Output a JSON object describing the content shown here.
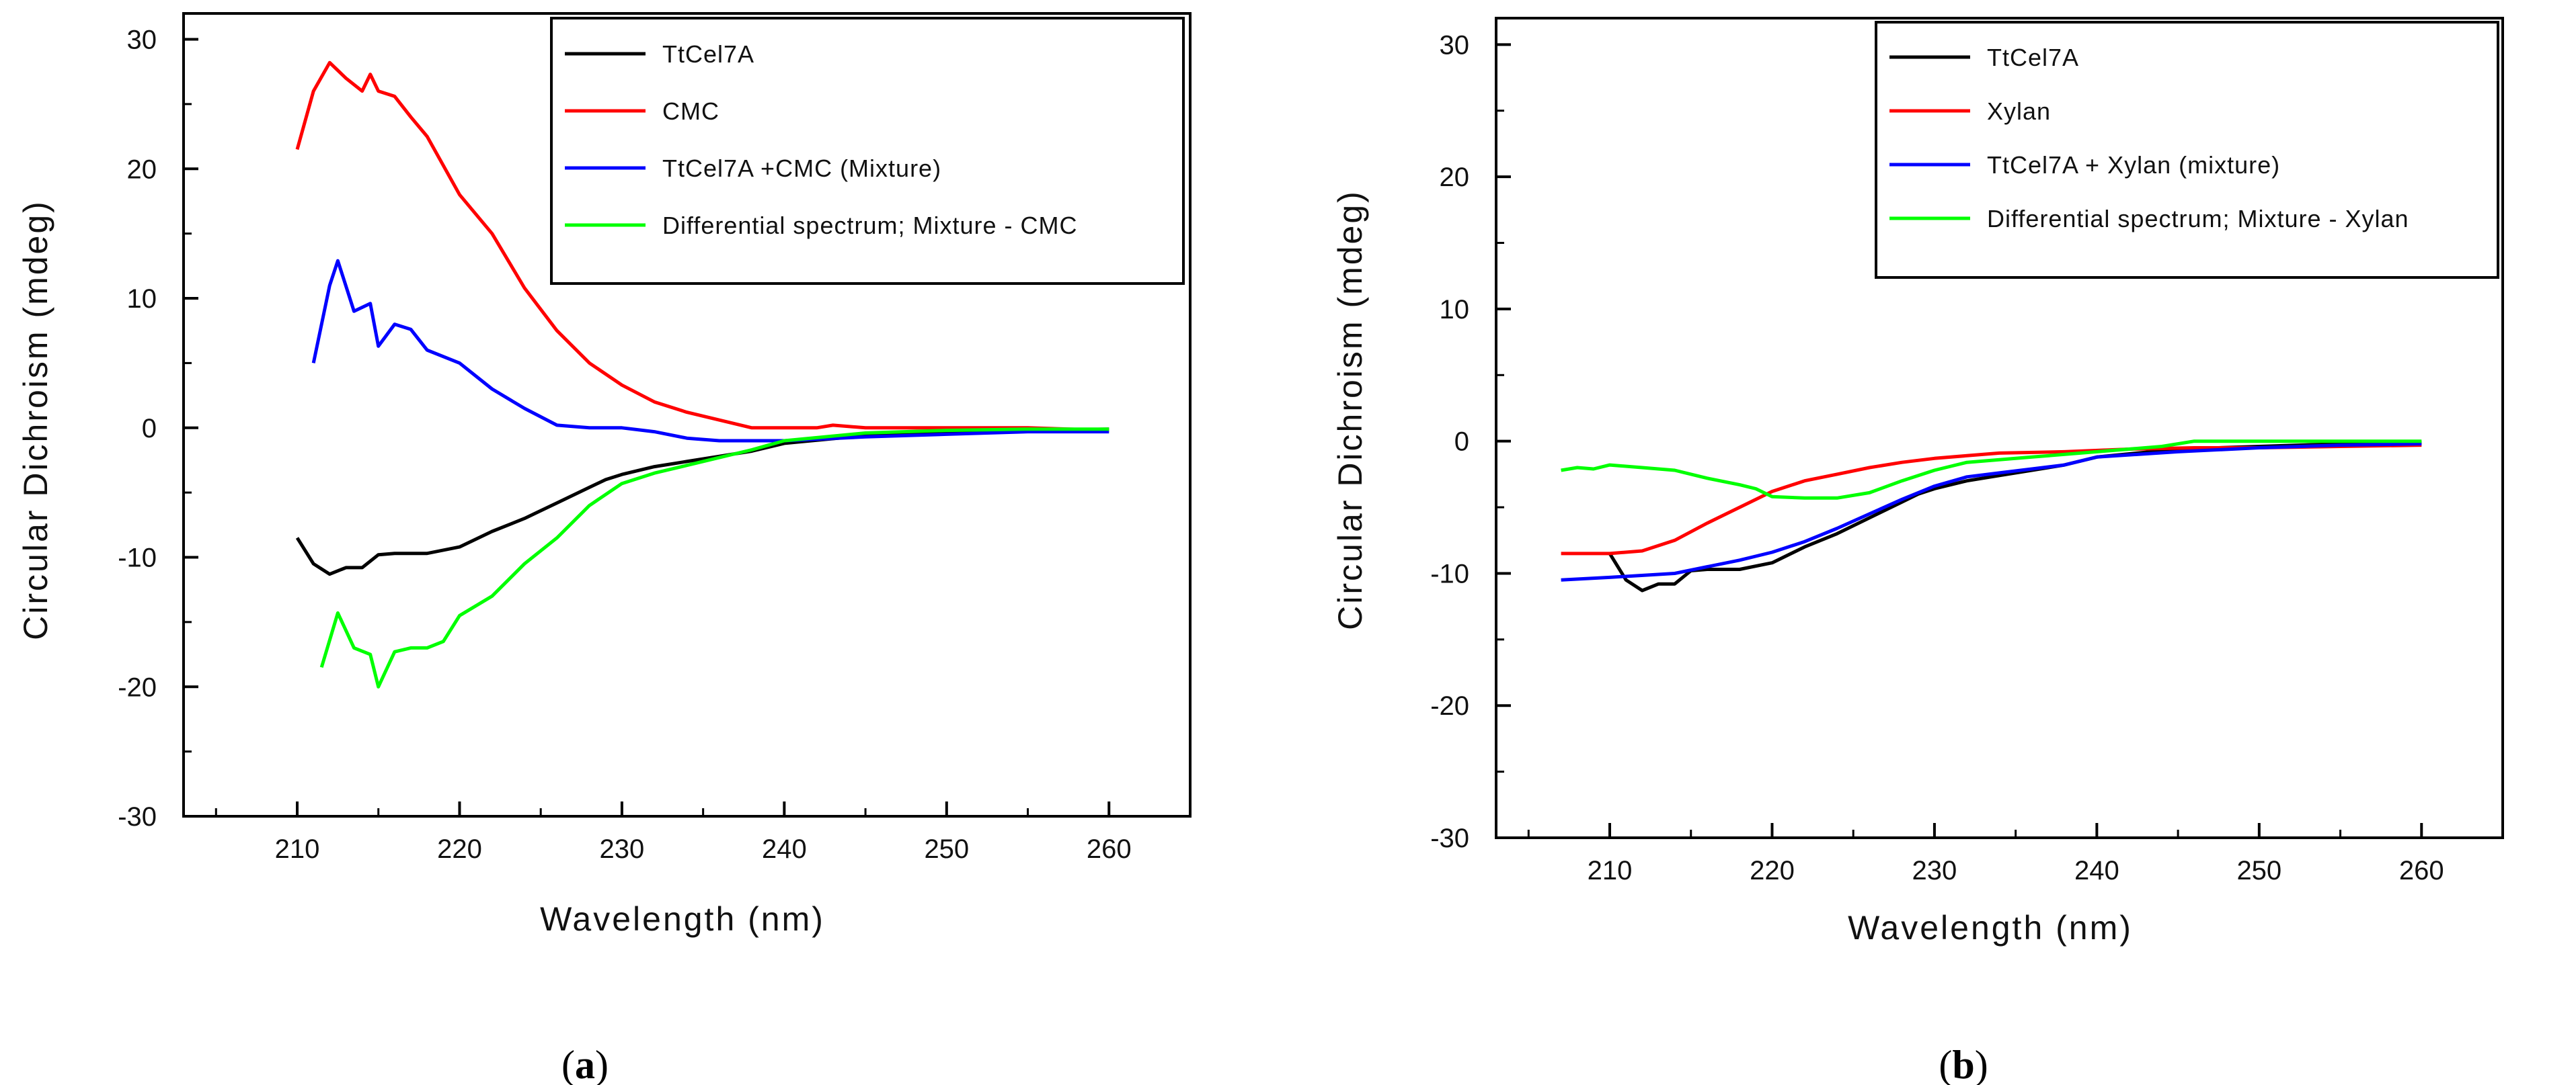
{
  "chart_data": [
    {
      "type": "line",
      "panel_label": "(a)",
      "panel_letter": "a",
      "xlabel": "Wavelength (nm)",
      "ylabel": "Circular Dichroism (mdeg)",
      "xlim": [
        203,
        265
      ],
      "ylim": [
        -30,
        32
      ],
      "xticks": [
        210,
        220,
        230,
        240,
        250,
        260
      ],
      "yticks": [
        -30,
        -20,
        -10,
        0,
        10,
        20,
        30
      ],
      "legend_position": "top-right",
      "series": [
        {
          "name": "TtCel7A",
          "color": "#000000",
          "x": [
            210,
            211,
            212,
            213,
            214,
            215,
            216,
            218,
            220,
            222,
            224,
            226,
            228,
            229,
            230,
            232,
            234,
            236,
            238,
            240,
            245,
            250,
            255,
            260
          ],
          "y": [
            -8.5,
            -10.5,
            -11.3,
            -10.8,
            -10.8,
            -9.8,
            -9.7,
            -9.7,
            -9.2,
            -8.0,
            -7.0,
            -5.8,
            -4.6,
            -4,
            -3.6,
            -3,
            -2.6,
            -2.2,
            -1.8,
            -1.2,
            -0.6,
            -0.4,
            -0.2,
            -0.1
          ]
        },
        {
          "name": "CMC",
          "color": "#ff0000",
          "x": [
            210,
            211,
            212,
            213,
            214,
            214.5,
            215,
            216,
            217,
            218,
            220,
            222,
            224,
            226,
            228,
            230,
            232,
            234,
            236,
            238,
            240,
            242,
            243,
            245,
            250,
            255,
            260
          ],
          "y": [
            21.5,
            26,
            28.2,
            27,
            26,
            27.3,
            26,
            25.6,
            24,
            22.5,
            18,
            15,
            10.8,
            7.5,
            5,
            3.3,
            2,
            1.2,
            0.6,
            0,
            0,
            0,
            0.2,
            0,
            0,
            0,
            -0.2
          ]
        },
        {
          "name": "TtCel7A +CMC (Mixture)",
          "color": "#0000ff",
          "x": [
            211,
            212,
            212.5,
            213.5,
            214.5,
            215,
            216,
            217,
            218,
            220,
            222,
            224,
            226,
            228,
            230,
            232,
            234,
            236,
            240,
            245,
            250,
            255,
            260
          ],
          "y": [
            5,
            11,
            12.9,
            9,
            9.6,
            6.3,
            8,
            7.6,
            6,
            5,
            3,
            1.5,
            0.2,
            0,
            0,
            -0.3,
            -0.8,
            -1,
            -1,
            -0.7,
            -0.5,
            -0.3,
            -0.3
          ]
        },
        {
          "name": "Differential spectrum; Mixture - CMC",
          "color": "#00ff00",
          "x": [
            211.5,
            212.5,
            213.5,
            214.5,
            215,
            216,
            217,
            218,
            219,
            220,
            222,
            224,
            226,
            228,
            230,
            232,
            234,
            236,
            238,
            240,
            245,
            250,
            255,
            260
          ],
          "y": [
            -18.5,
            -14.3,
            -17,
            -17.5,
            -20,
            -17.3,
            -17,
            -17,
            -16.5,
            -14.5,
            -13,
            -10.5,
            -8.5,
            -6,
            -4.3,
            -3.5,
            -2.9,
            -2.3,
            -1.7,
            -1,
            -0.4,
            -0.2,
            -0.1,
            -0.1
          ]
        }
      ]
    },
    {
      "type": "line",
      "panel_label": "(b)",
      "panel_letter": "b",
      "xlabel": "Wavelength (nm)",
      "ylabel": "Circular Dichroism (mdeg)",
      "xlim": [
        203,
        265
      ],
      "ylim": [
        -30,
        32
      ],
      "xticks": [
        210,
        220,
        230,
        240,
        250,
        260
      ],
      "yticks": [
        -30,
        -20,
        -10,
        0,
        10,
        20,
        30
      ],
      "legend_position": "top-right",
      "series": [
        {
          "name": "TtCel7A",
          "color": "#000000",
          "x": [
            210,
            211,
            212,
            213,
            214,
            215,
            216,
            218,
            220,
            222,
            224,
            226,
            228,
            229,
            230,
            232,
            234,
            236,
            238,
            240,
            245,
            250,
            255,
            260
          ],
          "y": [
            -8.5,
            -10.5,
            -11.3,
            -10.8,
            -10.8,
            -9.8,
            -9.7,
            -9.7,
            -9.2,
            -8.0,
            -7.0,
            -5.8,
            -4.6,
            -4,
            -3.6,
            -3,
            -2.6,
            -2.2,
            -1.8,
            -1.2,
            -0.6,
            -0.4,
            -0.2,
            -0.1
          ]
        },
        {
          "name": "Xylan",
          "color": "#ff0000",
          "x": [
            207,
            210,
            212,
            214,
            216,
            218,
            220,
            222,
            224,
            226,
            228,
            230,
            232,
            234,
            238,
            242,
            246,
            250,
            255,
            260
          ],
          "y": [
            -8.5,
            -8.5,
            -8.3,
            -7.5,
            -6.2,
            -5,
            -3.8,
            -3,
            -2.5,
            -2,
            -1.6,
            -1.3,
            -1.1,
            -0.9,
            -0.8,
            -0.6,
            -0.5,
            -0.5,
            -0.4,
            -0.3
          ]
        },
        {
          "name": "TtCel7A + Xylan (mixture)",
          "color": "#0000ff",
          "x": [
            207,
            210,
            214,
            216,
            218,
            220,
            222,
            224,
            226,
            228,
            230,
            232,
            234,
            236,
            238,
            240,
            245,
            250,
            255,
            260
          ],
          "y": [
            -10.5,
            -10.3,
            -10,
            -9.5,
            -9,
            -8.4,
            -7.6,
            -6.6,
            -5.5,
            -4.4,
            -3.4,
            -2.7,
            -2.4,
            -2.1,
            -1.8,
            -1.2,
            -0.8,
            -0.5,
            -0.3,
            -0.2
          ]
        },
        {
          "name": "Differential spectrum; Mixture - Xylan",
          "color": "#00ff00",
          "x": [
            207,
            208,
            209,
            210,
            212,
            214,
            216,
            218,
            219,
            220,
            222,
            224,
            226,
            228,
            230,
            232,
            236,
            240,
            244,
            246,
            248,
            250,
            255,
            260
          ],
          "y": [
            -2.2,
            -2.0,
            -2.1,
            -1.8,
            -2.0,
            -2.2,
            -2.8,
            -3.3,
            -3.6,
            -4.2,
            -4.3,
            -4.3,
            -3.9,
            -3.0,
            -2.2,
            -1.6,
            -1.2,
            -0.8,
            -0.4,
            0,
            0,
            0,
            0,
            0
          ]
        }
      ]
    }
  ]
}
